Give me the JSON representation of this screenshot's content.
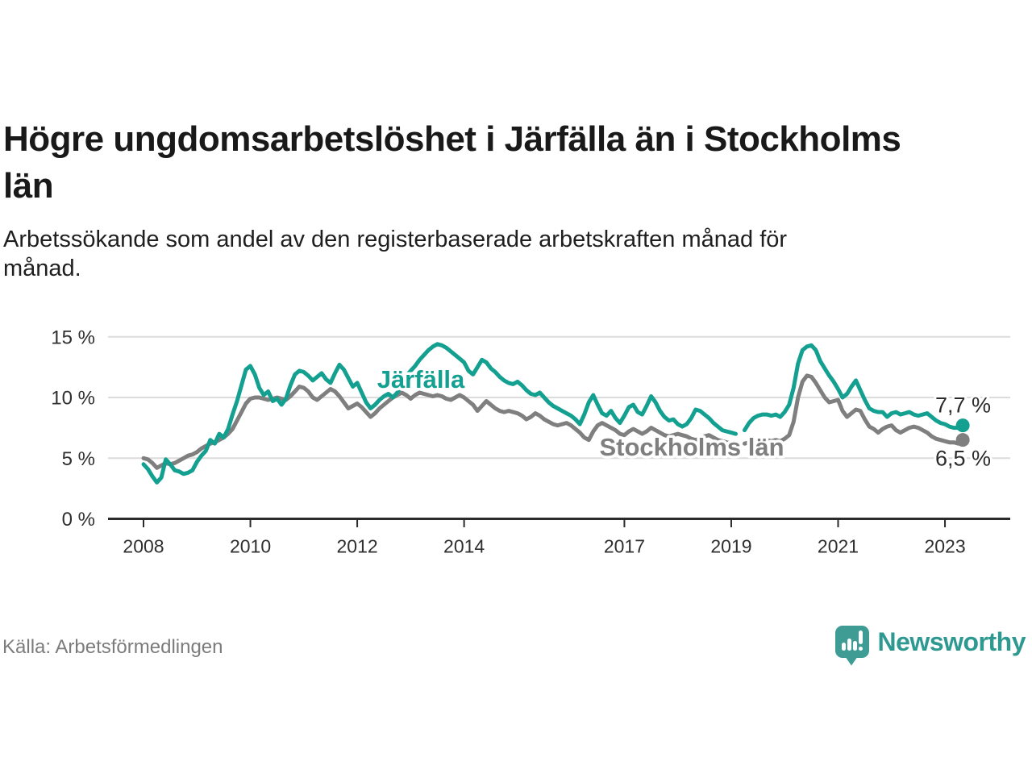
{
  "header": {
    "title": "Högre ungdomsarbetslöshet i Järfälla än i Stockholms\nlän",
    "subtitle": "Arbetssökande som andel av den registerbaserade arbetskraften månad för\nmånad."
  },
  "footer": {
    "source": "Källa: Arbetsförmedlingen",
    "brand": "Newsworthy",
    "logo_icon": "bar-chart-speech-bubble-icon"
  },
  "colors": {
    "jarfalla_teal": "#14a090",
    "stockholm_gray": "#7f7f7f",
    "grid": "#dcdcdc",
    "axis": "#2b2b2b",
    "tick_text": "#2f2f2f",
    "title_text": "#191919",
    "muted_text": "#7c7c7c",
    "brand_teal": "#2e9990",
    "logo_teal": "#3e9c94"
  },
  "chart_data": {
    "type": "line",
    "frequency": "monthly",
    "x_start": "2008-01",
    "x_end": "2023-05",
    "note_gap": "null = month with missing data (statistics gap early 2019)",
    "ylim": [
      0,
      15
    ],
    "yticks": [
      {
        "value": 0,
        "label": "0 %"
      },
      {
        "value": 5,
        "label": "5 %"
      },
      {
        "value": 10,
        "label": "10 %"
      },
      {
        "value": 15,
        "label": "15 %"
      }
    ],
    "xticks": [
      {
        "year": 2008,
        "label": "2008"
      },
      {
        "year": 2010,
        "label": "2010"
      },
      {
        "year": 2012,
        "label": "2012"
      },
      {
        "year": 2014,
        "label": "2014"
      },
      {
        "year": 2017,
        "label": "2017"
      },
      {
        "year": 2019,
        "label": "2019"
      },
      {
        "year": 2021,
        "label": "2021"
      },
      {
        "year": 2023,
        "label": "2023"
      }
    ],
    "series": [
      {
        "name": "Järfälla",
        "color": "#14a090",
        "end_label": "7,7 %",
        "values": [
          4.5,
          4.1,
          3.5,
          3.0,
          3.4,
          4.9,
          4.5,
          4.0,
          3.9,
          3.7,
          3.8,
          4.0,
          4.7,
          5.2,
          5.6,
          6.5,
          6.2,
          7.0,
          6.7,
          7.4,
          8.6,
          9.7,
          11.0,
          12.3,
          12.6,
          11.9,
          10.8,
          10.2,
          10.5,
          9.7,
          9.9,
          9.4,
          9.9,
          11.0,
          11.9,
          12.2,
          12.1,
          11.8,
          11.4,
          11.7,
          12.0,
          11.5,
          11.2,
          12.0,
          12.7,
          12.3,
          11.6,
          10.9,
          11.2,
          10.4,
          9.6,
          9.1,
          9.4,
          9.8,
          10.1,
          10.3,
          10.0,
          10.4,
          11.1,
          11.8,
          12.2,
          12.6,
          13.1,
          13.5,
          13.9,
          14.2,
          14.4,
          14.3,
          14.1,
          13.8,
          13.5,
          13.2,
          12.9,
          12.2,
          11.9,
          12.5,
          13.1,
          12.9,
          12.4,
          12.1,
          11.7,
          11.4,
          11.2,
          11.1,
          11.3,
          11.0,
          10.6,
          10.3,
          10.2,
          10.4,
          10.0,
          9.6,
          9.3,
          9.1,
          8.9,
          8.7,
          8.5,
          8.2,
          7.8,
          8.6,
          9.6,
          10.2,
          9.4,
          8.7,
          8.5,
          8.9,
          8.3,
          7.9,
          8.5,
          9.2,
          9.4,
          8.8,
          8.6,
          9.3,
          10.1,
          9.6,
          8.9,
          8.4,
          8.1,
          8.2,
          7.8,
          7.6,
          7.8,
          8.3,
          9.0,
          8.9,
          8.6,
          8.3,
          7.9,
          7.6,
          7.3,
          7.2,
          7.1,
          7.0,
          null,
          7.3,
          7.9,
          8.3,
          8.5,
          8.6,
          8.6,
          8.5,
          8.6,
          8.4,
          8.8,
          9.4,
          10.8,
          12.8,
          13.9,
          14.2,
          14.3,
          13.9,
          13.0,
          12.4,
          11.8,
          11.3,
          10.7,
          10.0,
          10.3,
          10.9,
          11.4,
          10.6,
          9.8,
          9.1,
          8.9,
          8.8,
          8.8,
          8.4,
          8.7,
          8.8,
          8.6,
          8.7,
          8.8,
          8.6,
          8.5,
          8.6,
          8.7,
          8.4,
          8.1,
          7.9,
          7.8,
          7.6,
          7.5,
          7.5,
          7.7
        ]
      },
      {
        "name": "Stockholms län",
        "color": "#7f7f7f",
        "end_label": "6,5 %",
        "values": [
          5.0,
          4.9,
          4.6,
          4.2,
          4.4,
          4.6,
          4.5,
          4.6,
          4.8,
          5.0,
          5.2,
          5.3,
          5.5,
          5.8,
          6.0,
          6.2,
          6.3,
          6.5,
          6.7,
          7.0,
          7.4,
          8.1,
          8.8,
          9.5,
          9.9,
          10.0,
          10.0,
          9.9,
          9.8,
          9.9,
          10.0,
          9.9,
          9.8,
          10.1,
          10.5,
          10.9,
          10.8,
          10.5,
          10.0,
          9.8,
          10.1,
          10.4,
          10.7,
          10.5,
          10.1,
          9.6,
          9.1,
          9.3,
          9.5,
          9.2,
          8.8,
          8.4,
          8.7,
          9.1,
          9.4,
          9.7,
          10.0,
          10.2,
          10.4,
          10.2,
          9.9,
          10.2,
          10.4,
          10.3,
          10.2,
          10.1,
          10.2,
          10.1,
          9.9,
          9.8,
          10.0,
          10.2,
          10.0,
          9.7,
          9.4,
          8.9,
          9.3,
          9.7,
          9.4,
          9.1,
          8.9,
          8.8,
          8.9,
          8.8,
          8.7,
          8.5,
          8.2,
          8.4,
          8.7,
          8.5,
          8.2,
          8.0,
          7.8,
          7.7,
          7.8,
          7.9,
          7.7,
          7.4,
          7.1,
          6.7,
          6.5,
          7.2,
          7.7,
          7.9,
          7.7,
          7.5,
          7.3,
          7.0,
          6.9,
          7.2,
          7.4,
          7.2,
          7.0,
          7.2,
          7.5,
          7.3,
          7.1,
          6.9,
          6.8,
          6.9,
          7.0,
          6.9,
          6.8,
          6.6,
          6.5,
          6.6,
          6.8,
          6.9,
          6.7,
          6.5,
          6.4,
          6.3,
          6.2,
          6.1,
          null,
          6.2,
          6.3,
          6.5,
          6.6,
          6.6,
          6.5,
          6.4,
          6.5,
          6.4,
          6.6,
          6.9,
          8.0,
          10.0,
          11.3,
          11.8,
          11.7,
          11.2,
          10.6,
          10.0,
          9.6,
          9.7,
          9.8,
          8.9,
          8.4,
          8.7,
          9.0,
          8.9,
          8.2,
          7.6,
          7.4,
          7.1,
          7.4,
          7.6,
          7.7,
          7.3,
          7.1,
          7.3,
          7.5,
          7.6,
          7.5,
          7.3,
          7.1,
          6.8,
          6.6,
          6.5,
          6.4,
          6.3,
          6.3,
          6.2,
          6.5
        ]
      }
    ]
  }
}
